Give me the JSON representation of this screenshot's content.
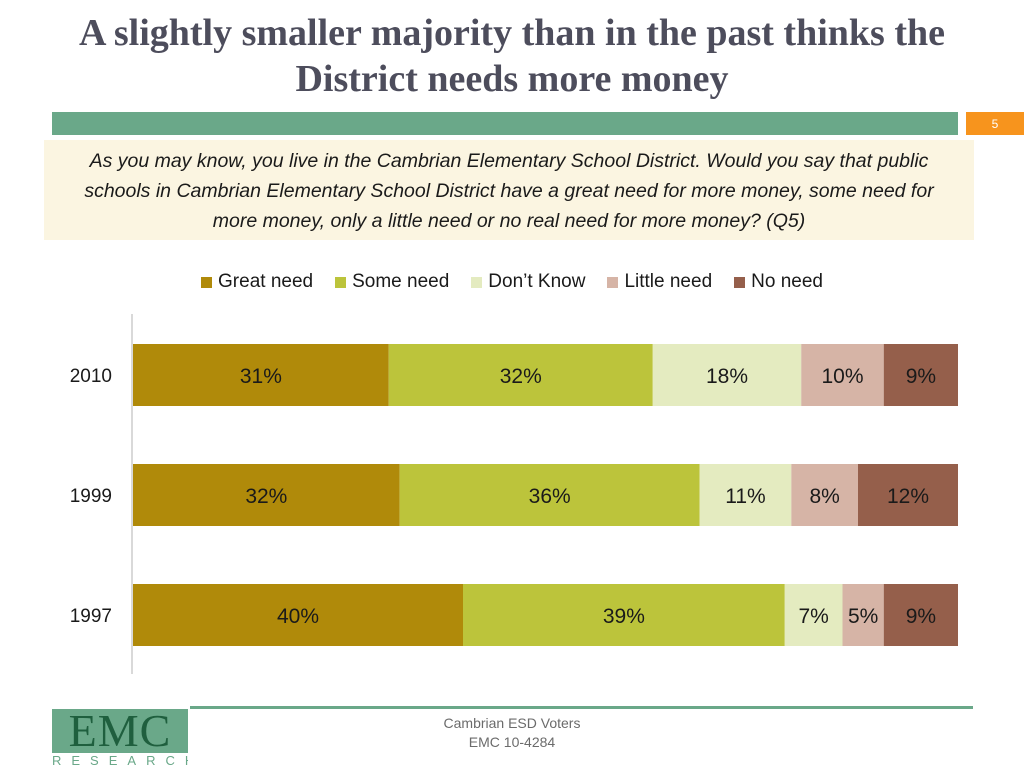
{
  "title": "A slightly smaller majority than in the past thinks the District needs more money",
  "page_number": "5",
  "question": "As you may know, you live in the Cambrian Elementary School District. Would you say that public schools in Cambrian Elementary School District have a great need for more money, some need for more money, only a little need or no real need for more money? (Q5)",
  "chart_data": {
    "type": "bar",
    "orientation": "horizontal",
    "stacked": true,
    "percent_stacked": true,
    "title": "",
    "xlabel": "",
    "ylabel": "",
    "grid": false,
    "legend_position": "top",
    "categories": [
      "2010",
      "1999",
      "1997"
    ],
    "series": [
      {
        "name": "Great need",
        "color": "#b08a0a",
        "values": [
          31,
          32,
          40
        ],
        "labels": [
          "31%",
          "32%",
          "40%"
        ]
      },
      {
        "name": "Some need",
        "color": "#bcc43b",
        "values": [
          32,
          36,
          39
        ],
        "labels": [
          "32%",
          "36%",
          "39%"
        ]
      },
      {
        "name": "Don’t Know",
        "color": "#e4ebc0",
        "values": [
          18,
          11,
          7
        ],
        "labels": [
          "18%",
          "11%",
          "7%"
        ]
      },
      {
        "name": "Little need",
        "color": "#d6b4a6",
        "values": [
          10,
          8,
          5
        ],
        "labels": [
          "10%",
          "8%",
          "5%"
        ]
      },
      {
        "name": "No need",
        "color": "#955f4b",
        "values": [
          9,
          12,
          9
        ],
        "labels": [
          "9%",
          "12%",
          "9%"
        ]
      }
    ]
  },
  "footer": {
    "line1": "Cambrian ESD Voters",
    "line2": "EMC 10-4284"
  },
  "logo": {
    "main": "EMC",
    "sub": "RESEARCH"
  }
}
